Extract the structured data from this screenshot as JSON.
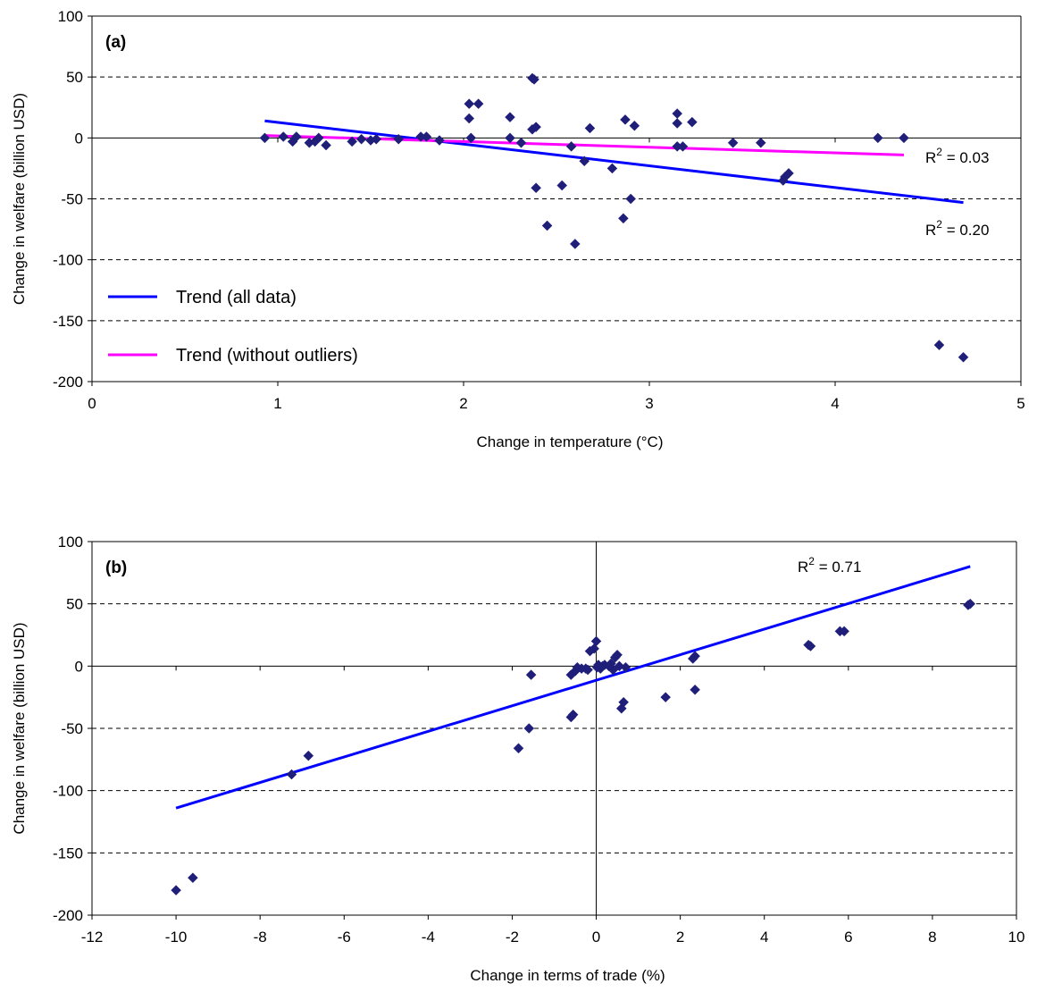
{
  "colors": {
    "points": "#1f1f7a",
    "trend_all": "#0000ff",
    "trend_no_outliers": "#ff00ff",
    "grid": "#000000"
  },
  "chart_data": [
    {
      "type": "scatter",
      "panel_label": "(a)",
      "xlabel": "Change in temperature (°C)",
      "ylabel": "Change in welfare (billion USD)",
      "xlim": [
        0,
        5
      ],
      "ylim": [
        -200,
        100
      ],
      "xticks": [
        "0",
        "1",
        "2",
        "3",
        "4",
        "5"
      ],
      "yticks": [
        "100",
        "50",
        "0",
        "-50",
        "-100",
        "-150",
        "-200"
      ],
      "grid": "horizontal dashed",
      "legend_position": "lower-left",
      "legend": [
        {
          "label": "Trend (all data)",
          "color": "#0000ff"
        },
        {
          "label": "Trend (without outliers)",
          "color": "#ff00ff"
        }
      ],
      "trendlines": [
        {
          "name": "Trend (all data)",
          "x": [
            0.93,
            4.69
          ],
          "y": [
            14,
            -53
          ],
          "r2_label": "R2 = 0.20",
          "r2_value": "0.20",
          "color": "#0000ff"
        },
        {
          "name": "Trend (without outliers)",
          "x": [
            0.93,
            4.37
          ],
          "y": [
            2,
            -14
          ],
          "r2_label": "R2 = 0.03",
          "r2_value": "0.03",
          "color": "#ff00ff"
        }
      ],
      "points": [
        [
          0.93,
          0
        ],
        [
          1.03,
          1
        ],
        [
          1.08,
          -3
        ],
        [
          1.1,
          1
        ],
        [
          1.17,
          -4
        ],
        [
          1.2,
          -3
        ],
        [
          1.22,
          0
        ],
        [
          1.26,
          -6
        ],
        [
          1.4,
          -3
        ],
        [
          1.45,
          -1
        ],
        [
          1.5,
          -2
        ],
        [
          1.53,
          -1
        ],
        [
          1.65,
          -1
        ],
        [
          1.77,
          1
        ],
        [
          1.8,
          1
        ],
        [
          1.87,
          -2
        ],
        [
          2.03,
          28
        ],
        [
          2.03,
          16
        ],
        [
          2.04,
          0
        ],
        [
          2.08,
          28
        ],
        [
          2.25,
          17
        ],
        [
          2.25,
          0
        ],
        [
          2.31,
          -4
        ],
        [
          2.37,
          49
        ],
        [
          2.38,
          48
        ],
        [
          2.37,
          7
        ],
        [
          2.39,
          9
        ],
        [
          2.39,
          -41
        ],
        [
          2.45,
          -72
        ],
        [
          2.53,
          -39
        ],
        [
          2.58,
          -7
        ],
        [
          2.6,
          -87
        ],
        [
          2.65,
          -19
        ],
        [
          2.68,
          8
        ],
        [
          2.8,
          -25
        ],
        [
          2.86,
          -66
        ],
        [
          2.87,
          15
        ],
        [
          2.9,
          -50
        ],
        [
          2.92,
          10
        ],
        [
          3.15,
          20
        ],
        [
          3.15,
          12
        ],
        [
          3.15,
          -7
        ],
        [
          3.18,
          -7
        ],
        [
          3.23,
          13
        ],
        [
          3.45,
          -4
        ],
        [
          3.6,
          -4
        ],
        [
          3.72,
          -35
        ],
        [
          3.73,
          -32
        ],
        [
          3.75,
          -29
        ],
        [
          4.23,
          0
        ],
        [
          4.37,
          0
        ],
        [
          4.56,
          -170
        ],
        [
          4.69,
          -180
        ]
      ]
    },
    {
      "type": "scatter",
      "panel_label": "(b)",
      "xlabel": "Change in terms of trade (%)",
      "ylabel": "Change in welfare (billion USD)",
      "xlim": [
        -12,
        10
      ],
      "ylim": [
        -200,
        100
      ],
      "xticks": [
        "-12",
        "-10",
        "-8",
        "-6",
        "-4",
        "-2",
        "0",
        "2",
        "4",
        "6",
        "8",
        "10"
      ],
      "yticks": [
        "100",
        "50",
        "0",
        "-50",
        "-100",
        "-150",
        "-200"
      ],
      "grid": "horizontal dashed",
      "trendlines": [
        {
          "name": "Trend",
          "x": [
            -10,
            8.9
          ],
          "y": [
            -114,
            80
          ],
          "r2_label": "R2 = 0.71",
          "r2_value": "0.71",
          "color": "#0000ff"
        }
      ],
      "points": [
        [
          -10.0,
          -180
        ],
        [
          -9.6,
          -170
        ],
        [
          -7.25,
          -87
        ],
        [
          -6.85,
          -72
        ],
        [
          -1.85,
          -66
        ],
        [
          -1.6,
          -50
        ],
        [
          -1.55,
          -7
        ],
        [
          -0.6,
          -41
        ],
        [
          -0.55,
          -39
        ],
        [
          -0.6,
          -7
        ],
        [
          -0.5,
          -4
        ],
        [
          -0.45,
          -1
        ],
        [
          -0.35,
          -2
        ],
        [
          -0.25,
          -2
        ],
        [
          -0.2,
          -3
        ],
        [
          -0.15,
          12
        ],
        [
          -0.05,
          14
        ],
        [
          0.0,
          20
        ],
        [
          0.02,
          -1
        ],
        [
          0.05,
          1
        ],
        [
          0.1,
          -2
        ],
        [
          0.15,
          0
        ],
        [
          0.2,
          1
        ],
        [
          0.3,
          0
        ],
        [
          0.35,
          2
        ],
        [
          0.4,
          -3
        ],
        [
          0.45,
          7
        ],
        [
          0.5,
          9
        ],
        [
          0.55,
          0
        ],
        [
          0.6,
          -34
        ],
        [
          0.65,
          -29
        ],
        [
          0.7,
          -1
        ],
        [
          1.65,
          -25
        ],
        [
          2.3,
          6
        ],
        [
          2.35,
          -19
        ],
        [
          2.35,
          8
        ],
        [
          5.05,
          17
        ],
        [
          5.1,
          16
        ],
        [
          5.8,
          28
        ],
        [
          5.9,
          28
        ],
        [
          8.85,
          49
        ],
        [
          8.9,
          50
        ]
      ]
    }
  ]
}
